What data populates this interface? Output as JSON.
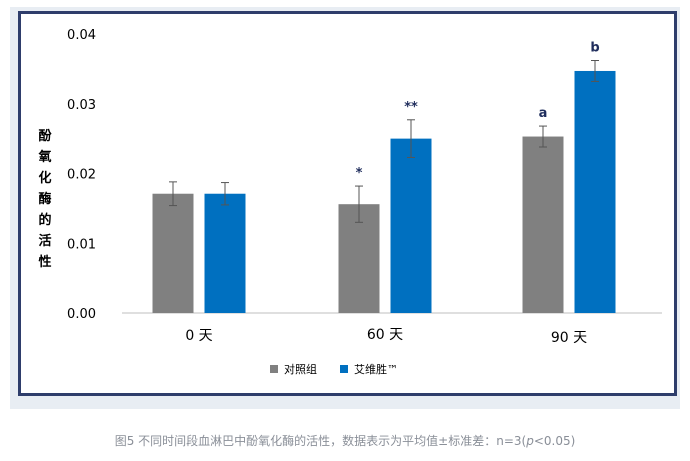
{
  "chart_data": {
    "type": "bar",
    "ylabel": "酚氧化酶的活性",
    "ylim": [
      0,
      0.04
    ],
    "yticks": [
      "0.00",
      "0.01",
      "0.02",
      "0.03",
      "0.04"
    ],
    "categories": [
      "0 天",
      "60 天",
      "90 天"
    ],
    "series": [
      {
        "name": "对照组",
        "color": "#808080",
        "values": [
          0.0171,
          0.0156,
          0.0253
        ],
        "errors": [
          0.0017,
          0.0026,
          0.0015
        ],
        "labels": [
          "",
          "*",
          "a"
        ]
      },
      {
        "name": "艾维胜™",
        "color": "#0070c0",
        "values": [
          0.0171,
          0.025,
          0.0347
        ],
        "errors": [
          0.0016,
          0.0027,
          0.0015
        ],
        "labels": [
          "",
          "**",
          "b"
        ]
      }
    ],
    "grid": false,
    "legend_position": "bottom"
  },
  "caption": {
    "prefix": "图5 不同时间段血淋巴中酚氧化酶的活性，数据表示为平均值±标准差：n=3(",
    "p_symbol": "p",
    "suffix": "<0.05)"
  }
}
